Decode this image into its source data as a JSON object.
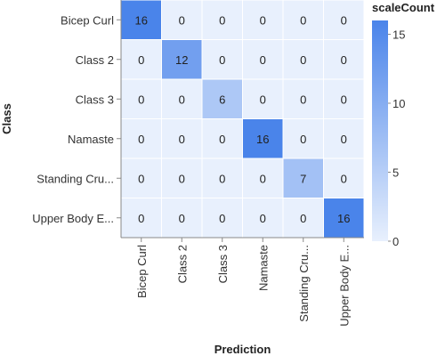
{
  "chart_data": {
    "type": "heatmap",
    "title": "",
    "xlabel": "Prediction",
    "ylabel": "Class",
    "rows": [
      "Bicep Curl",
      "Class 2",
      "Class 3",
      "Namaste",
      "Standing Cru...",
      "Upper Body E..."
    ],
    "columns": [
      "Bicep Curl",
      "Class 2",
      "Class 3",
      "Namaste",
      "Standing Cru...",
      "Upper Body E..."
    ],
    "values": [
      [
        16,
        0,
        0,
        0,
        0,
        0
      ],
      [
        0,
        12,
        0,
        0,
        0,
        0
      ],
      [
        0,
        0,
        6,
        0,
        0,
        0
      ],
      [
        0,
        0,
        0,
        16,
        0,
        0
      ],
      [
        0,
        0,
        0,
        0,
        7,
        0
      ],
      [
        0,
        0,
        0,
        0,
        0,
        16
      ]
    ],
    "legend": {
      "title": "scaleCount",
      "ticks": [
        0,
        5,
        10,
        15
      ],
      "domain": [
        0,
        16
      ],
      "placement": "right"
    },
    "colors": {
      "low": "#e8f0fd",
      "high": "#4a84ea",
      "grid": "#ffffff",
      "axis": "#888888"
    }
  }
}
